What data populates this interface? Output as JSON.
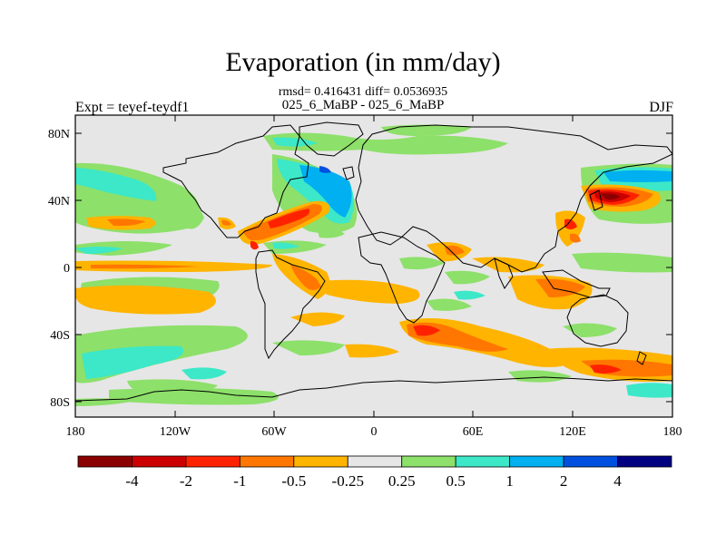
{
  "title": "Evaporation (in mm/day)",
  "stats": "rmsd= 0.416431 diff= 0.0536935",
  "case_label": "025_6_MaBP - 025_6_MaBP",
  "experiment": "Expt = teyef-teydf1",
  "season": "DJF",
  "lat_ticks": [
    "80N",
    "40N",
    "0",
    "40S",
    "80S"
  ],
  "lon_ticks": [
    "180",
    "120W",
    "60W",
    "0",
    "60E",
    "120E",
    "180"
  ],
  "colorbar": {
    "colors": [
      "#8b0000",
      "#cc0000",
      "#ff2200",
      "#ff7700",
      "#ffb400",
      "#e6e6e6",
      "#8de06a",
      "#3ce8c8",
      "#00b0f0",
      "#0050e0",
      "#000080"
    ],
    "labels": [
      "-4",
      "-2",
      "-1",
      "-0.5",
      "-0.25",
      "0.25",
      "0.5",
      "1",
      "2",
      "4"
    ]
  },
  "anomaly_patches": [
    {
      "lon": -170,
      "lat": 42,
      "level": "+0.5"
    },
    {
      "lon": -140,
      "lat": 20,
      "level": "+0.5"
    },
    {
      "lon": -100,
      "lat": 50,
      "level": "+0.5"
    },
    {
      "lon": -150,
      "lat": 25,
      "level": "-0.5"
    },
    {
      "lon": -140,
      "lat": 5,
      "level": "-0.25"
    },
    {
      "lon": -140,
      "lat": -15,
      "level": "-0.25"
    },
    {
      "lon": -150,
      "lat": -55,
      "level": "+1"
    },
    {
      "lon": -55,
      "lat": 30,
      "level": "-1"
    },
    {
      "lon": -30,
      "lat": 58,
      "level": "+2"
    },
    {
      "lon": -45,
      "lat": -10,
      "level": "-0.5"
    },
    {
      "lon": 25,
      "lat": -35,
      "level": "-1"
    },
    {
      "lon": 70,
      "lat": -40,
      "level": "-0.5"
    },
    {
      "lon": 145,
      "lat": 38,
      "level": "-4"
    },
    {
      "lon": 140,
      "lat": 48,
      "level": "+2"
    },
    {
      "lon": 150,
      "lat": -52,
      "level": "-0.5"
    },
    {
      "lon": 60,
      "lat": 70,
      "level": "+0.5"
    }
  ]
}
